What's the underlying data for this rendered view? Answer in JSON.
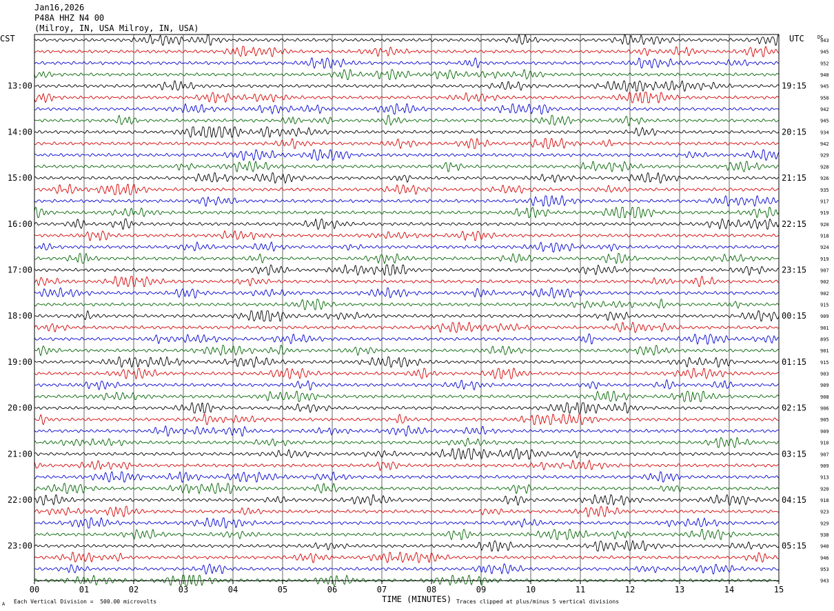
{
  "header": {
    "date": "Jan16,2026",
    "station": "P48A HHZ N4 00",
    "location": "(Milroy, IN, USA Milroy, IN, USA)"
  },
  "labels": {
    "left_tz": "CST",
    "right_tz": "UTC",
    "dc": "DC",
    "xlabel": "TIME (MINUTES)",
    "footer_left": "Each Vertical Division =  500.00 microvolts",
    "footer_right": "Traces clipped at plus/minus 5 vertical divisions",
    "corner_mark": "A"
  },
  "colors": {
    "trace_cycle": [
      "#000000",
      "#d40000",
      "#0000d0",
      "#006400"
    ],
    "grid": "#000000"
  },
  "chart_data": {
    "type": "line",
    "description_kind": "helicorder",
    "xlim": [
      0,
      15
    ],
    "x_ticks": [
      "00",
      "01",
      "02",
      "03",
      "04",
      "05",
      "06",
      "07",
      "08",
      "09",
      "10",
      "11",
      "12",
      "13",
      "14",
      "15"
    ],
    "left_hour_labels": [
      "13:00",
      "14:00",
      "15:00",
      "16:00",
      "17:00",
      "18:00",
      "19:00",
      "20:00",
      "21:00",
      "22:00",
      "23:00"
    ],
    "right_hour_labels": [
      "19:15",
      "20:15",
      "21:15",
      "22:15",
      "23:15",
      "00:15",
      "01:15",
      "02:15",
      "03:15",
      "04:15",
      "05:15"
    ],
    "dc_values": [
      "943",
      "945",
      "952",
      "940",
      "945",
      "950",
      "942",
      "945",
      "934",
      "942",
      "929",
      "928",
      "926",
      "935",
      "917",
      "919",
      "920",
      "918",
      "924",
      "919",
      "907",
      "902",
      "902",
      "915",
      "909",
      "901",
      "895",
      "901",
      "915",
      "903",
      "909",
      "908",
      "906",
      "905",
      "909",
      "910",
      "907",
      "909",
      "913",
      "920",
      "918",
      "923",
      "929",
      "938",
      "940",
      "946",
      "953",
      "943"
    ],
    "traces_per_hour": 4,
    "amplitude_unit": "microvolts",
    "division_value": 500.0,
    "clip_divisions": 5
  }
}
